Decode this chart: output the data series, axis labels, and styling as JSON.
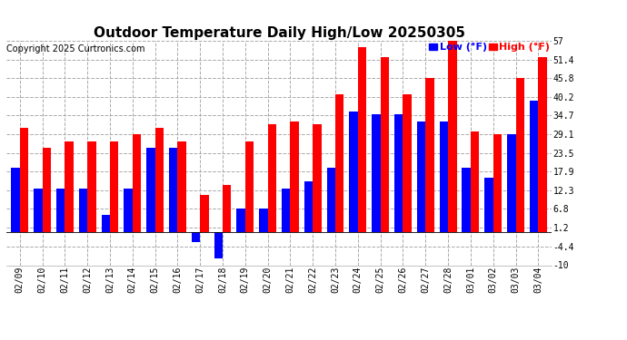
{
  "title": "Outdoor Temperature Daily High/Low 20250305",
  "copyright": "Copyright 2025 Curtronics.com",
  "legend_low": "Low (°F)",
  "legend_high": "High (°F)",
  "dates": [
    "02/09",
    "02/10",
    "02/11",
    "02/12",
    "02/13",
    "02/14",
    "02/15",
    "02/16",
    "02/17",
    "02/18",
    "02/19",
    "02/20",
    "02/21",
    "02/22",
    "02/23",
    "02/24",
    "02/25",
    "02/26",
    "02/27",
    "02/28",
    "03/01",
    "03/02",
    "03/03",
    "03/04"
  ],
  "highs": [
    31.0,
    25.0,
    27.0,
    27.0,
    27.0,
    29.0,
    31.0,
    27.0,
    11.0,
    14.0,
    27.0,
    32.0,
    33.0,
    32.0,
    41.0,
    55.0,
    52.0,
    41.0,
    46.0,
    57.0,
    30.0,
    29.0,
    46.0,
    52.0
  ],
  "lows": [
    19.0,
    13.0,
    13.0,
    13.0,
    5.0,
    13.0,
    25.0,
    25.0,
    -3.0,
    -8.0,
    7.0,
    7.0,
    13.0,
    15.0,
    19.0,
    36.0,
    35.0,
    35.0,
    33.0,
    33.0,
    19.0,
    16.0,
    29.0,
    39.0
  ],
  "high_color": "#ff0000",
  "low_color": "#0000ff",
  "bg_color": "#ffffff",
  "grid_color": "#aaaaaa",
  "ylim_min": -10.0,
  "ylim_max": 57.0,
  "yticks": [
    -10.0,
    -4.4,
    1.2,
    6.8,
    12.3,
    17.9,
    23.5,
    29.1,
    34.7,
    40.2,
    45.8,
    51.4,
    57.0
  ],
  "title_fontsize": 11,
  "copyright_fontsize": 7,
  "legend_fontsize": 8,
  "tick_fontsize": 7,
  "bar_width": 0.38
}
